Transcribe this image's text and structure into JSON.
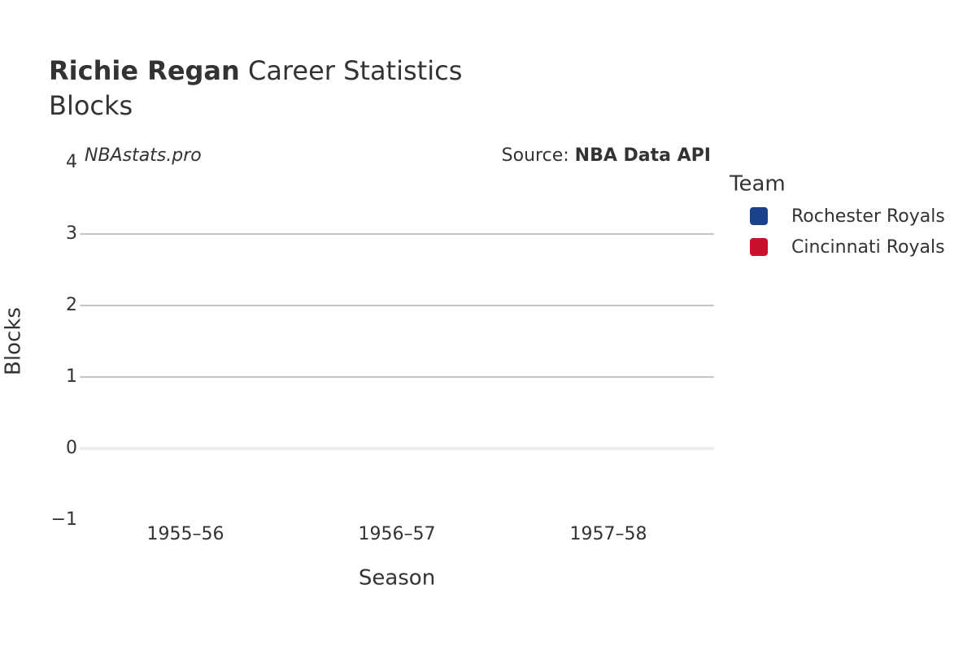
{
  "chart_data": {
    "type": "line",
    "title": {
      "bold": "Richie Regan",
      "rest": "Career Statistics"
    },
    "subtitle": "Blocks",
    "watermark": "NBAstats.pro",
    "source": {
      "label": "Source:",
      "name": "NBA Data API"
    },
    "x_label": "Season",
    "y_label": "Blocks",
    "legend_title": "Team",
    "categories": [
      "1955–56",
      "1956–57",
      "1957–58"
    ],
    "series": [
      {
        "name": "Rochester Royals",
        "color": "#1a428a",
        "values": [
          null,
          null,
          null
        ]
      },
      {
        "name": "Cincinnati Royals",
        "color": "#c8102e",
        "values": [
          null,
          null,
          null
        ]
      }
    ],
    "ylim": [
      -1,
      4
    ],
    "yticks": [
      {
        "value": -1,
        "label": "−1"
      },
      0,
      1,
      2,
      3,
      4
    ],
    "grid": true
  }
}
